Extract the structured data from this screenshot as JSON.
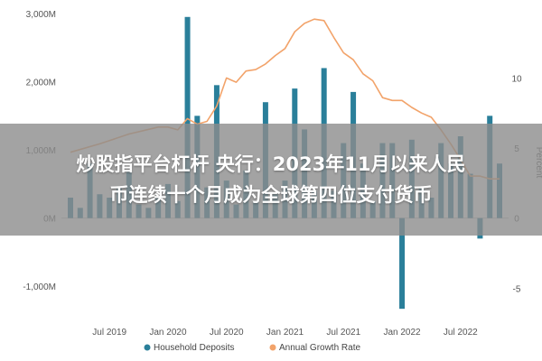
{
  "headline": {
    "line1": "炒股指平台杠杆 央行：2023年11月以来人民",
    "line2": "币连续十个月成为全球第四位支付货币"
  },
  "chart_data": {
    "type": "bar+line",
    "x_tick_labels": [
      "Jul 2019",
      "Jan 2020",
      "Jul 2020",
      "Jan 2021",
      "Jul 2021",
      "Jan 2022",
      "Jul 2022"
    ],
    "y_left": {
      "ylim": [
        -1500,
        3000
      ],
      "tick_values": [
        3000,
        2000,
        1000,
        0,
        -1000
      ],
      "tick_labels": [
        "3,000M",
        "2,000M",
        "1,000M",
        "0M",
        "-1,000M"
      ]
    },
    "y_right": {
      "label": "Percent",
      "ylim": [
        -7.3,
        14.6
      ],
      "tick_values": [
        10,
        5,
        0,
        -5
      ],
      "tick_labels": [
        "10",
        "5",
        "0",
        "-5"
      ]
    },
    "legend": {
      "position": "bottom"
    },
    "colors": {
      "bars": "#2a7f9a",
      "line": "#f2a36a",
      "axis": "#cccccc"
    },
    "series": [
      {
        "name": "Household Deposits",
        "type": "bar",
        "x": [
          "2019-03",
          "2019-04",
          "2019-05",
          "2019-06",
          "2019-07",
          "2019-08",
          "2019-09",
          "2019-10",
          "2019-11",
          "2019-12",
          "2020-01",
          "2020-02",
          "2020-03",
          "2020-04",
          "2020-05",
          "2020-06",
          "2020-07",
          "2020-08",
          "2020-09",
          "2020-10",
          "2020-11",
          "2020-12",
          "2021-01",
          "2021-02",
          "2021-03",
          "2021-04",
          "2021-05",
          "2021-06",
          "2021-07",
          "2021-08",
          "2021-09",
          "2021-10",
          "2021-11",
          "2021-12",
          "2022-01",
          "2022-02",
          "2022-03",
          "2022-04",
          "2022-05",
          "2022-06",
          "2022-07",
          "2022-08",
          "2022-09",
          "2022-10",
          "2022-11"
        ],
        "values": [
          300,
          150,
          800,
          350,
          300,
          450,
          700,
          200,
          150,
          300,
          500,
          250,
          2950,
          1500,
          450,
          1950,
          550,
          200,
          700,
          250,
          1700,
          350,
          550,
          1900,
          1300,
          400,
          2200,
          400,
          1100,
          1850,
          800,
          250,
          1100,
          1100,
          -1330,
          1150,
          450,
          300,
          1100,
          800,
          1200,
          650,
          -300,
          1500,
          800
        ]
      },
      {
        "name": "Annual Growth Rate",
        "type": "line",
        "x": [
          "2019-03",
          "2019-06",
          "2019-09",
          "2019-12",
          "2020-01",
          "2020-02",
          "2020-03",
          "2020-04",
          "2020-05",
          "2020-06",
          "2020-07",
          "2020-08",
          "2020-09",
          "2020-10",
          "2020-11",
          "2020-12",
          "2021-01",
          "2021-02",
          "2021-03",
          "2021-04",
          "2021-05",
          "2021-06",
          "2021-07",
          "2021-08",
          "2021-09",
          "2021-10",
          "2021-11",
          "2021-12",
          "2022-01",
          "2022-02",
          "2022-03",
          "2022-04",
          "2022-05",
          "2022-06",
          "2022-07",
          "2022-08",
          "2022-09",
          "2022-10",
          "2022-11"
        ],
        "values": [
          4.7,
          5.3,
          6.0,
          6.5,
          6.5,
          6.3,
          7.1,
          6.7,
          6.9,
          8.0,
          10.0,
          9.7,
          10.5,
          10.6,
          11.0,
          11.6,
          12.1,
          13.3,
          13.9,
          14.2,
          14.1,
          12.9,
          11.8,
          11.3,
          10.3,
          9.8,
          8.6,
          8.4,
          8.4,
          7.9,
          7.5,
          7.2,
          6.3,
          5.3,
          4.2,
          3.0,
          3.0,
          2.8,
          2.8
        ]
      }
    ]
  }
}
